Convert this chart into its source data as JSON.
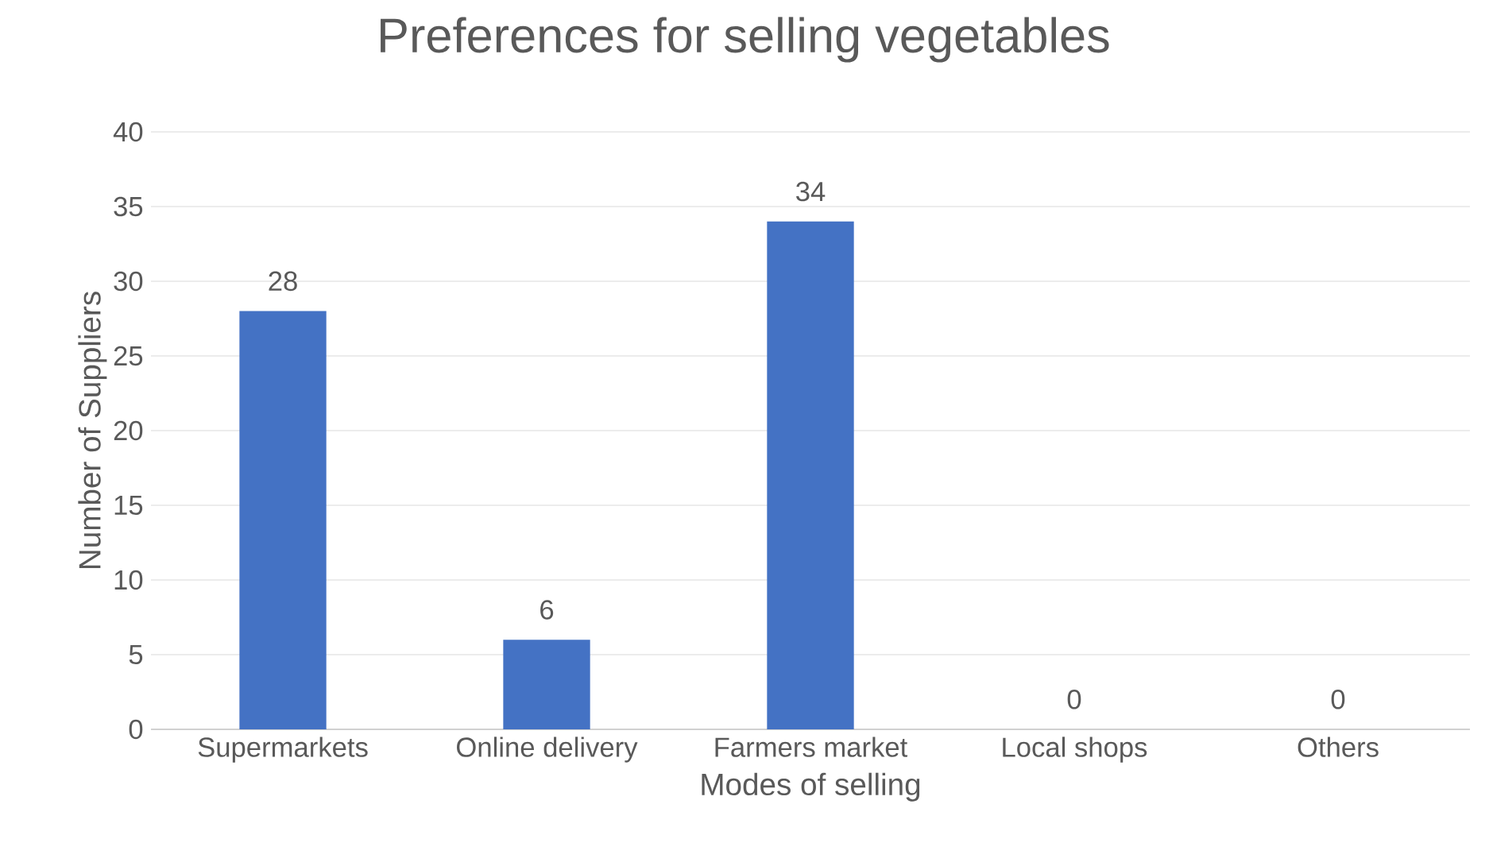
{
  "chart_data": {
    "type": "bar",
    "title": "Preferences for selling vegetables",
    "xlabel": "Modes of selling",
    "ylabel": "Number of Suppliers",
    "categories": [
      "Supermarkets",
      "Online delivery",
      "Farmers market",
      "Local shops",
      "Others"
    ],
    "values": [
      28,
      6,
      34,
      0,
      0
    ],
    "color": "#4472c4",
    "ylim": [
      0,
      40
    ],
    "yticks": [
      0,
      5,
      10,
      15,
      20,
      25,
      30,
      35,
      40
    ],
    "grid": "y",
    "data_labels": true
  }
}
